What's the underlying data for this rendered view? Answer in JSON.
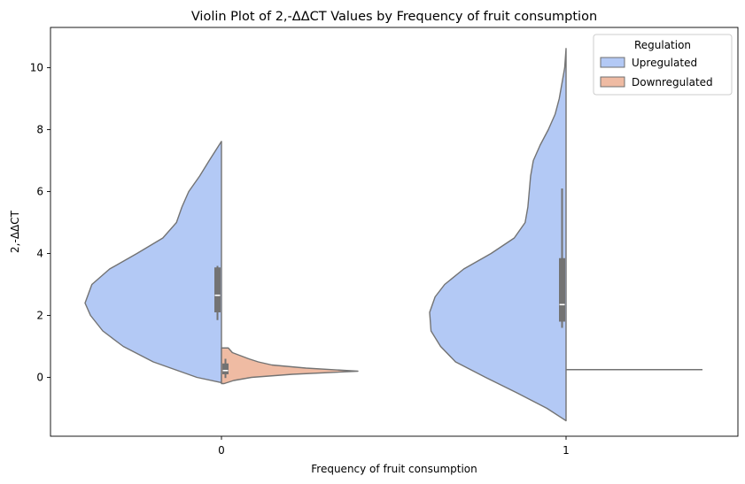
{
  "chart_data": {
    "type": "violin",
    "title": "Violin Plot of 2,-ΔΔCT Values by Frequency of fruit consumption",
    "xlabel": "Frequency of fruit consumption",
    "ylabel": "2,-ΔΔCT",
    "categories": [
      "0",
      "1"
    ],
    "ylim": [
      -1.9,
      11.3
    ],
    "yticks": [
      0,
      2,
      4,
      6,
      8,
      10
    ],
    "split": true,
    "legend": {
      "title": "Regulation",
      "position": "top-right"
    },
    "series": [
      {
        "name": "Upregulated",
        "side": "left",
        "color": "#b3c9f5",
        "groups": [
          {
            "category": "0",
            "range": [
              -0.17,
              7.62
            ],
            "box": {
              "q1": 2.1,
              "median": 2.65,
              "q3": 3.55,
              "whisker_low": 1.85,
              "whisker_high": 3.6
            },
            "density": [
              [
                -0.17,
                0.0
              ],
              [
                0.0,
                0.18
              ],
              [
                0.5,
                0.5
              ],
              [
                1.0,
                0.72
              ],
              [
                1.5,
                0.87
              ],
              [
                2.0,
                0.96
              ],
              [
                2.4,
                1.0
              ],
              [
                3.0,
                0.95
              ],
              [
                3.5,
                0.82
              ],
              [
                4.0,
                0.62
              ],
              [
                4.5,
                0.43
              ],
              [
                5.0,
                0.33
              ],
              [
                5.5,
                0.29
              ],
              [
                6.0,
                0.24
              ],
              [
                6.5,
                0.16
              ],
              [
                7.0,
                0.09
              ],
              [
                7.62,
                0.0
              ]
            ]
          },
          {
            "category": "1",
            "range": [
              -1.4,
              10.62
            ],
            "box": {
              "q1": 1.8,
              "median": 2.35,
              "q3": 3.85,
              "whisker_low": 1.6,
              "whisker_high": 6.1
            },
            "density": [
              [
                -1.4,
                0.0
              ],
              [
                -1.0,
                0.14
              ],
              [
                -0.5,
                0.36
              ],
              [
                0.0,
                0.59
              ],
              [
                0.5,
                0.81
              ],
              [
                1.0,
                0.92
              ],
              [
                1.5,
                0.99
              ],
              [
                2.1,
                1.0
              ],
              [
                2.6,
                0.96
              ],
              [
                3.0,
                0.89
              ],
              [
                3.5,
                0.75
              ],
              [
                4.0,
                0.55
              ],
              [
                4.5,
                0.38
              ],
              [
                5.0,
                0.3
              ],
              [
                5.5,
                0.28
              ],
              [
                6.0,
                0.27
              ],
              [
                6.5,
                0.26
              ],
              [
                7.0,
                0.24
              ],
              [
                7.5,
                0.19
              ],
              [
                8.0,
                0.13
              ],
              [
                8.5,
                0.08
              ],
              [
                9.0,
                0.05
              ],
              [
                9.5,
                0.03
              ],
              [
                10.0,
                0.01
              ],
              [
                10.62,
                0.0
              ]
            ]
          }
        ]
      },
      {
        "name": "Downregulated",
        "side": "right",
        "color": "#efbba3",
        "groups": [
          {
            "category": "0",
            "range": [
              -0.2,
              0.95
            ],
            "box": {
              "q1": 0.1,
              "median": 0.22,
              "q3": 0.45,
              "whisker_low": -0.02,
              "whisker_high": 0.6
            },
            "density": [
              [
                -0.2,
                0.02
              ],
              [
                -0.1,
                0.09
              ],
              [
                0.0,
                0.22
              ],
              [
                0.1,
                0.52
              ],
              [
                0.2,
                1.0
              ],
              [
                0.3,
                0.62
              ],
              [
                0.4,
                0.37
              ],
              [
                0.5,
                0.27
              ],
              [
                0.6,
                0.2
              ],
              [
                0.7,
                0.14
              ],
              [
                0.8,
                0.08
              ],
              [
                0.9,
                0.06
              ],
              [
                0.95,
                0.05
              ]
            ]
          },
          {
            "category": "1",
            "range": [
              0.25,
              0.25
            ],
            "density": [
              [
                0.25,
                1.0
              ]
            ]
          }
        ]
      }
    ]
  }
}
